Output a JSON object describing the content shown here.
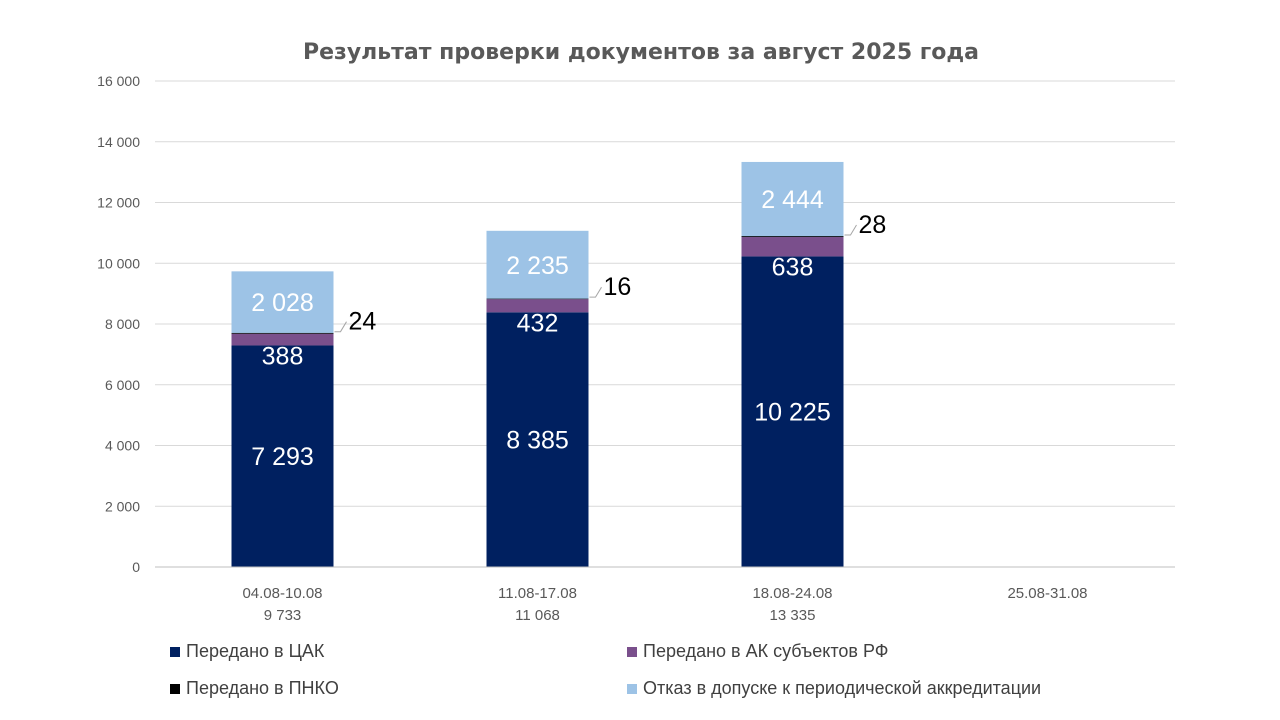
{
  "chart_data": {
    "type": "bar",
    "stacked": true,
    "title": "Результат проверки документов за август 2025 года",
    "categories": [
      "04.08-10.08",
      "11.08-17.08",
      "18.08-24.08",
      "25.08-31.08"
    ],
    "category_totals": [
      "9 733",
      "11 068",
      "13 335",
      ""
    ],
    "ylim": [
      0,
      16000
    ],
    "yticks": [
      0,
      2000,
      4000,
      6000,
      8000,
      10000,
      12000,
      14000,
      16000
    ],
    "ytick_labels": [
      "0",
      "2 000",
      "4 000",
      "6 000",
      "8 000",
      "10 000",
      "12 000",
      "14 000",
      "16 000"
    ],
    "grid": true,
    "legend_position": "bottom",
    "series": [
      {
        "name": "Передано в ЦАК",
        "color": "#002060",
        "values": [
          7293,
          8385,
          10225,
          null
        ],
        "labels": [
          "7 293",
          "8 385",
          "10 225",
          ""
        ]
      },
      {
        "name": "Передано в АК субъектов РФ",
        "color": "#7a4f8c",
        "values": [
          388,
          432,
          638,
          null
        ],
        "labels": [
          "388",
          "432",
          "638",
          ""
        ]
      },
      {
        "name": "Передано в ПНКО",
        "color": "#000000",
        "values": [
          24,
          16,
          28,
          null
        ],
        "labels": [
          "24",
          "16",
          "28",
          ""
        ]
      },
      {
        "name": "Отказ в допуске к периодической аккредитации",
        "color": "#9dc3e6",
        "values": [
          2028,
          2235,
          2444,
          null
        ],
        "labels": [
          "2 028",
          "2 235",
          "2 444",
          ""
        ]
      }
    ]
  }
}
